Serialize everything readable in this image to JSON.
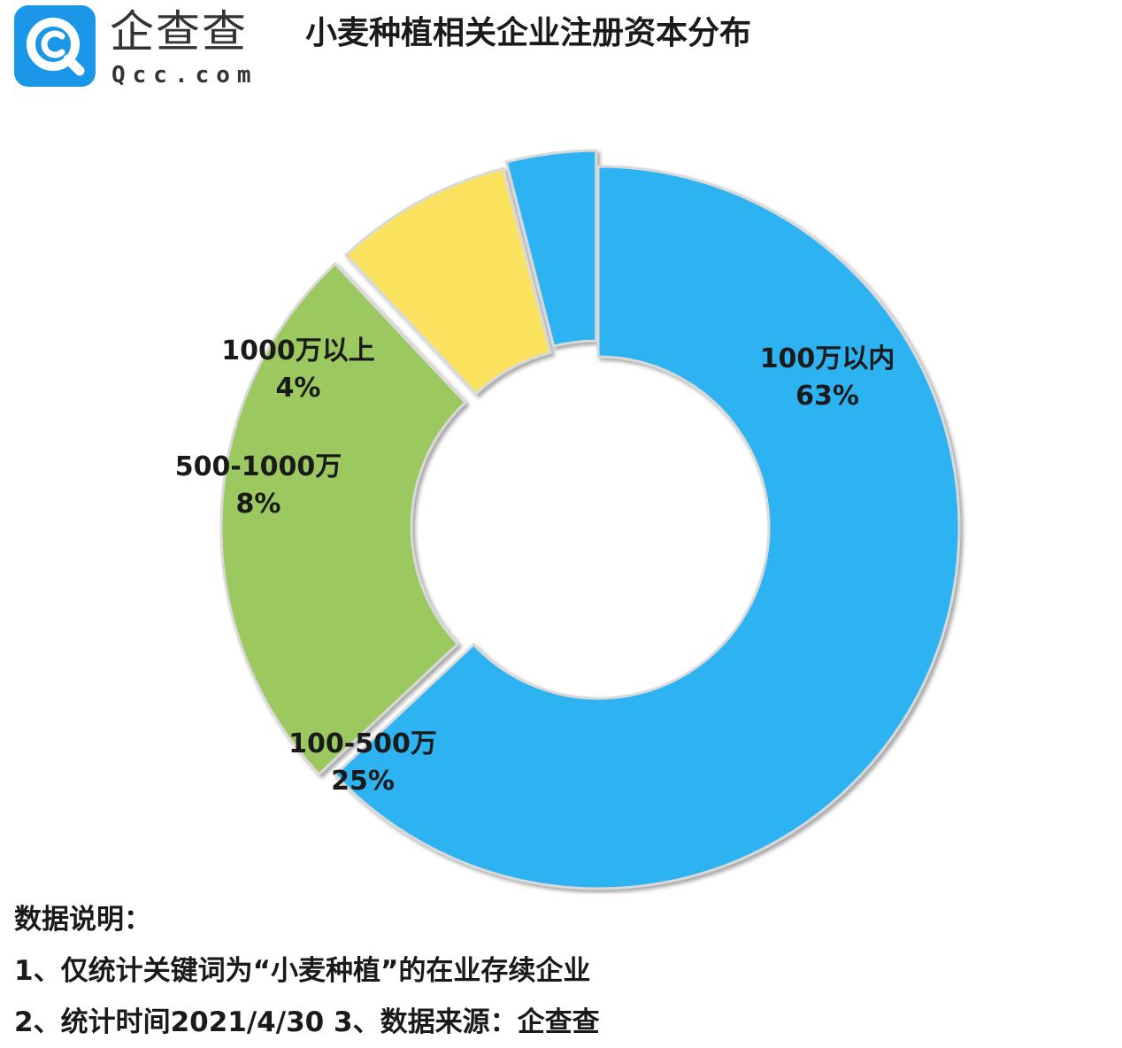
{
  "logo": {
    "name_cn": "企查查",
    "name_en": "Qcc.com",
    "brand_color": "#1a97e8"
  },
  "title": "小麦种植相关企业注册资本分布",
  "chart_data": {
    "type": "pie",
    "variant": "donut",
    "slices": [
      {
        "label": "100万以内",
        "value": 63,
        "percent_label": "63%",
        "color": "#2db3f2"
      },
      {
        "label": "100-500万",
        "value": 25,
        "percent_label": "25%",
        "color": "#9bc85e"
      },
      {
        "label": "500-1000万",
        "value": 8,
        "percent_label": "8%",
        "color": "#fbe35e"
      },
      {
        "label": "1000万以上",
        "value": 4,
        "percent_label": "4%",
        "color": "#2db3f2"
      }
    ],
    "legend": "none"
  },
  "notes": {
    "heading": "数据说明：",
    "line1": "1、仅统计关键词为“小麦种植”的在业存续企业",
    "line2": "2、统计时间2021/4/30   3、数据来源：企查查"
  }
}
